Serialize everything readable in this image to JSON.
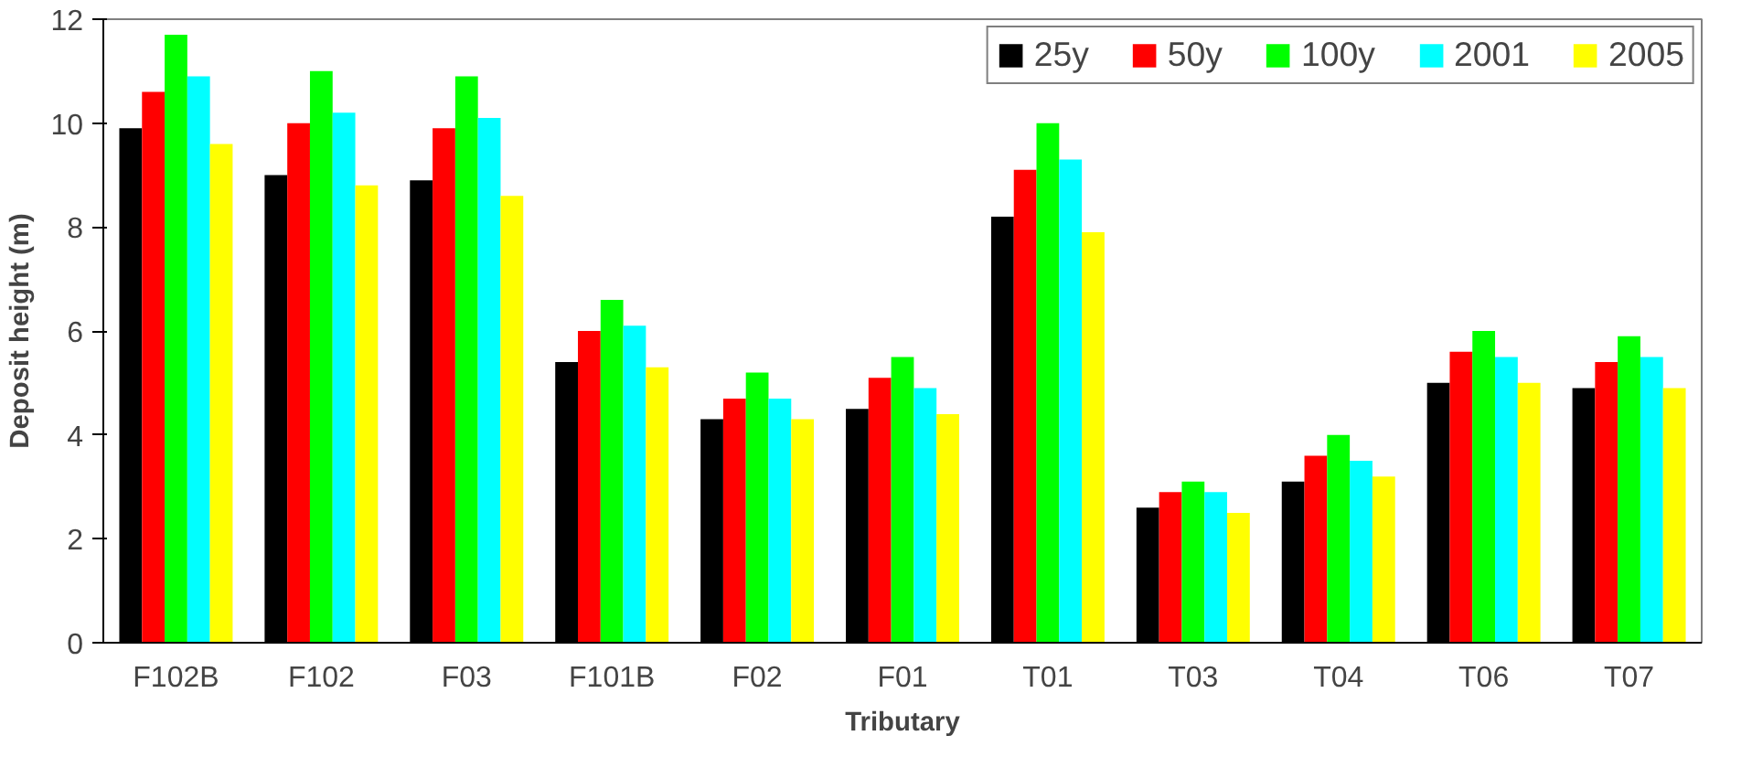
{
  "chart_data": {
    "type": "bar",
    "xlabel": "Tributary",
    "ylabel": "Deposit height (m)",
    "categories": [
      "F102B",
      "F102",
      "F03",
      "F101B",
      "F02",
      "F01",
      "T01",
      "T03",
      "T04",
      "T06",
      "T07"
    ],
    "series": [
      {
        "name": "25y",
        "color": "#000000",
        "values": [
          9.9,
          9.0,
          8.9,
          5.4,
          4.3,
          4.5,
          8.2,
          2.6,
          3.1,
          5.0,
          4.9
        ]
      },
      {
        "name": "50y",
        "color": "#ff0000",
        "values": [
          10.6,
          10.0,
          9.9,
          6.0,
          4.7,
          5.1,
          9.1,
          2.9,
          3.6,
          5.6,
          5.4
        ]
      },
      {
        "name": "100y",
        "color": "#00ff00",
        "values": [
          11.7,
          11.0,
          10.9,
          6.6,
          5.2,
          5.5,
          10.0,
          3.1,
          4.0,
          6.0,
          5.9
        ]
      },
      {
        "name": "2001",
        "color": "#00ffff",
        "values": [
          10.9,
          10.2,
          10.1,
          6.1,
          4.7,
          4.9,
          9.3,
          2.9,
          3.5,
          5.5,
          5.5
        ]
      },
      {
        "name": "2005",
        "color": "#ffff00",
        "values": [
          9.6,
          8.8,
          8.6,
          5.3,
          4.3,
          4.4,
          7.9,
          2.5,
          3.2,
          5.0,
          4.9
        ]
      }
    ],
    "ylim": [
      0,
      12
    ],
    "yticks": [
      0,
      2,
      4,
      6,
      8,
      10,
      12
    ],
    "grid": false,
    "legend": "top right"
  }
}
